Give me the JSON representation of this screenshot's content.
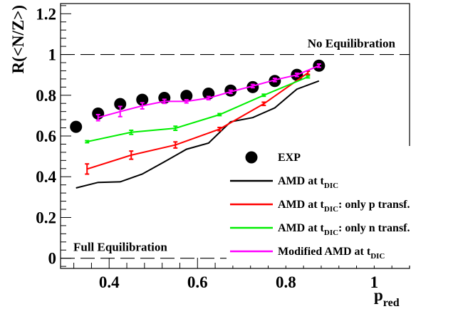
{
  "chart_data": {
    "type": "line",
    "title": "",
    "ylabel": "R(<N/Z>)",
    "xlabel": {
      "main": "p",
      "sub": "red"
    },
    "xlim": [
      0.29,
      1.08
    ],
    "ylim": [
      -0.05,
      1.25
    ],
    "x_ticks": [
      {
        "value": 0.4,
        "label": "0.4"
      },
      {
        "value": 0.6,
        "label": "0.6"
      },
      {
        "value": 0.8,
        "label": "0.8"
      },
      {
        "value": 1.0,
        "label": "1"
      }
    ],
    "y_ticks": [
      {
        "value": 0,
        "label": "0"
      },
      {
        "value": 0.2,
        "label": "0.2"
      },
      {
        "value": 0.4,
        "label": "0.4"
      },
      {
        "value": 0.6,
        "label": "0.6"
      },
      {
        "value": 0.8,
        "label": "0.8"
      },
      {
        "value": 1.0,
        "label": "1"
      },
      {
        "value": 1.2,
        "label": "1.2"
      }
    ],
    "reference_lines": [
      {
        "y": 1.0,
        "label": "No Equilibration",
        "style": "dashed"
      },
      {
        "y": 0.0,
        "label": "Full Equilibration",
        "style": "dashed"
      }
    ],
    "legend_position": "bottom-right",
    "series": [
      {
        "name": "EXP",
        "kind": "points",
        "color": "#000000",
        "x": [
          0.325,
          0.375,
          0.425,
          0.475,
          0.525,
          0.575,
          0.625,
          0.675,
          0.725,
          0.775,
          0.825,
          0.875
        ],
        "y": [
          0.645,
          0.71,
          0.757,
          0.778,
          0.787,
          0.797,
          0.808,
          0.823,
          0.84,
          0.87,
          0.9,
          0.945
        ]
      },
      {
        "name": "AMD at t",
        "name_sub": "DIC",
        "name_suffix": "",
        "kind": "line",
        "color": "#000000",
        "x": [
          0.325,
          0.375,
          0.425,
          0.475,
          0.525,
          0.575,
          0.625,
          0.675,
          0.725,
          0.775,
          0.825,
          0.875
        ],
        "y": [
          0.345,
          0.372,
          0.375,
          0.413,
          0.473,
          0.535,
          0.565,
          0.67,
          0.69,
          0.738,
          0.83,
          0.87
        ],
        "errors": []
      },
      {
        "name": "AMD  at t",
        "name_sub": "DIC",
        "name_suffix": ": only p transf.",
        "kind": "line",
        "color": "#ff0000",
        "x": [
          0.35,
          0.45,
          0.55,
          0.65,
          0.75,
          0.85
        ],
        "y": [
          0.438,
          0.506,
          0.556,
          0.634,
          0.758,
          0.91
        ],
        "errors": [
          0.025,
          0.02,
          0.015,
          0.008,
          0.008,
          0.008
        ]
      },
      {
        "name": "AMD  at t",
        "name_sub": "DIC",
        "name_suffix": ": only n transf.",
        "kind": "line",
        "color": "#00ee00",
        "x": [
          0.35,
          0.45,
          0.55,
          0.65,
          0.75,
          0.85
        ],
        "y": [
          0.572,
          0.618,
          0.638,
          0.705,
          0.8,
          0.89
        ],
        "errors": [
          0.005,
          0.01,
          0.01,
          0.005,
          0.005,
          0.005
        ]
      },
      {
        "name": "Modified AMD  at t",
        "name_sub": "DIC",
        "name_suffix": "",
        "kind": "line",
        "color": "#ff00ff",
        "x": [
          0.375,
          0.425,
          0.475,
          0.525,
          0.575,
          0.625,
          0.675,
          0.725,
          0.775,
          0.825,
          0.875
        ],
        "y": [
          0.69,
          0.72,
          0.748,
          0.77,
          0.77,
          0.786,
          0.817,
          0.845,
          0.875,
          0.9,
          0.945
        ],
        "errors": [
          0.015,
          0.025,
          0.015,
          0.01,
          0.008,
          0.008,
          0.008,
          0.008,
          0.008,
          0.008,
          0.008
        ]
      }
    ]
  }
}
